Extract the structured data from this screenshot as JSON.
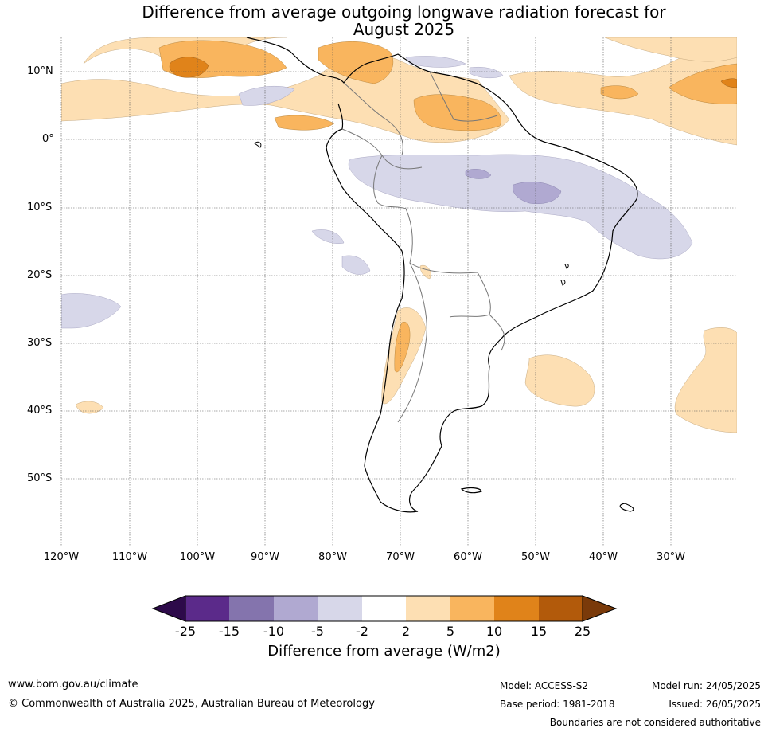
{
  "title_line1": "Difference from average outgoing longwave radiation forecast for",
  "title_line2": "August 2025",
  "lat_labels": [
    "10°N",
    "0°",
    "10°S",
    "20°S",
    "30°S",
    "40°S",
    "50°S"
  ],
  "lon_labels": [
    "120°W",
    "110°W",
    "100°W",
    "90°W",
    "80°W",
    "70°W",
    "60°W",
    "50°W",
    "40°W",
    "30°W"
  ],
  "colorbar": {
    "ticks": [
      "-25",
      "-15",
      "-10",
      "-5",
      "-2",
      "2",
      "5",
      "10",
      "15",
      "25"
    ],
    "label": "Difference from average (W/m2)",
    "colors": [
      "#2d0a4a",
      "#5b2a8a",
      "#8474ad",
      "#b0a9d1",
      "#d7d7e9",
      "#ffffff",
      "#fddfb3",
      "#f9b55e",
      "#e0831a",
      "#b25a0b",
      "#7a3a0a"
    ]
  },
  "footer": {
    "url": "www.bom.gov.au/climate",
    "copyright": "© Commonwealth of Australia 2025, Australian Bureau of Meteorology",
    "model": "Model: ACCESS-S2",
    "model_run": "Model run: 24/05/2025",
    "base_period": "Base period: 1981-2018",
    "issued": "Issued: 26/05/2025",
    "disclaimer": "Boundaries are not considered authoritative"
  }
}
